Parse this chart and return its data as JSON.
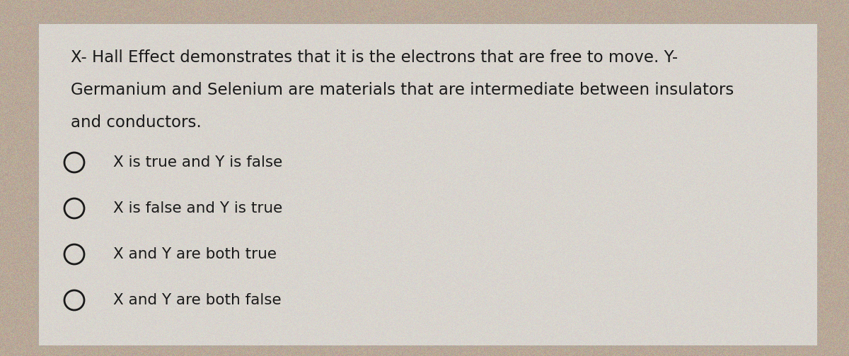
{
  "background_color": "#b8a898",
  "card_color": "#d8d4ce",
  "question_lines": [
    "X- Hall Effect demonstrates that it is the electrons that are free to move. Y-",
    "Germanium and Selenium are materials that are intermediate between insulators",
    "and conductors."
  ],
  "options": [
    "X is true and Y is false",
    "X is false and Y is true",
    "X and Y are both true",
    "X and Y are both false"
  ],
  "text_color": "#1a1a1a",
  "circle_color": "#1a1a1a",
  "font_size_question": 16.5,
  "font_size_options": 15.5,
  "circle_linewidth": 2.0
}
